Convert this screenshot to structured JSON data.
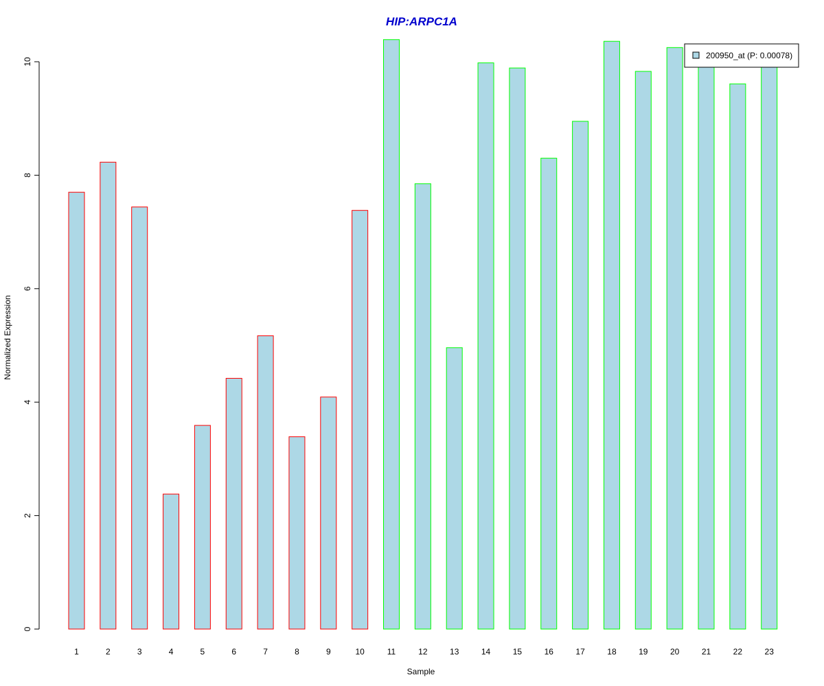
{
  "chart_data": {
    "type": "bar",
    "title": "HIP:ARPC1A",
    "xlabel": "Sample",
    "ylabel": "Normalized Expression",
    "ylim": [
      0,
      10.5
    ],
    "yticks": [
      0,
      2,
      4,
      6,
      8,
      10
    ],
    "categories": [
      "1",
      "2",
      "3",
      "4",
      "5",
      "6",
      "7",
      "8",
      "9",
      "10",
      "11",
      "12",
      "13",
      "14",
      "15",
      "16",
      "17",
      "18",
      "19",
      "20",
      "21",
      "22",
      "23"
    ],
    "series": [
      {
        "name": "200950_at (P: 0.00078)",
        "values": [
          7.7,
          8.23,
          7.44,
          2.38,
          3.59,
          4.42,
          5.17,
          3.39,
          4.09,
          7.38,
          10.39,
          7.85,
          4.96,
          9.98,
          9.89,
          8.3,
          8.95,
          10.36,
          9.83,
          10.25,
          9.93,
          9.61,
          10.31
        ]
      }
    ],
    "groups": [
      {
        "samples": [
          1,
          2,
          3,
          4,
          5,
          6,
          7,
          8,
          9,
          10
        ],
        "border_color": "#FF0000"
      },
      {
        "samples": [
          11,
          12,
          13,
          14,
          15,
          16,
          17,
          18,
          19,
          20,
          21,
          22,
          23
        ],
        "border_color": "#00FF00"
      }
    ],
    "bar_fill": "#ADD8E6",
    "title_color": "#0000CD",
    "legend": {
      "position": "top-right",
      "label": "200950_at (P: 0.00078)"
    }
  }
}
